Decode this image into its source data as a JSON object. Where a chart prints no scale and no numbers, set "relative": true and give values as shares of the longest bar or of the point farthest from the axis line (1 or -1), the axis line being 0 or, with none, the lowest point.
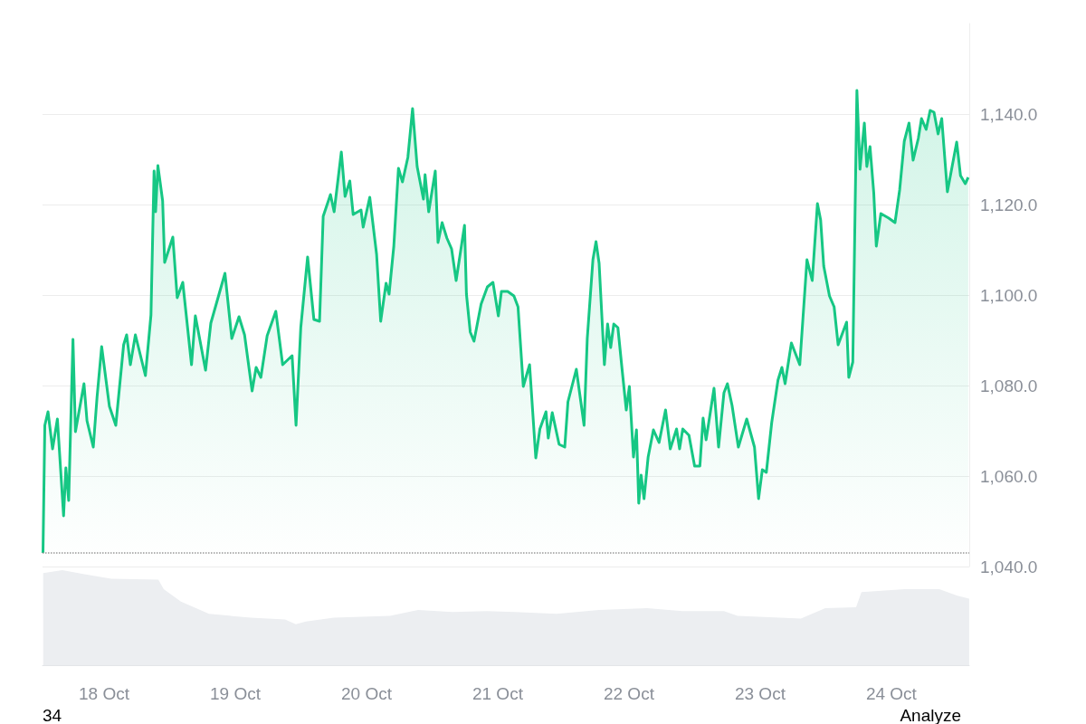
{
  "chart_data": [
    {
      "type": "area",
      "marker": "none",
      "grid": "y",
      "tick_labels": "y",
      "xlim": [
        "--10-17T12:45",
        "--10-24T14:15"
      ],
      "xticks": [
        {
          "value": "--10-18",
          "label": "18 Oct"
        },
        {
          "value": "--10-19",
          "label": "19 Oct"
        },
        {
          "value": "--10-20",
          "label": "20 Oct"
        },
        {
          "value": "--10-21",
          "label": "21 Oct"
        },
        {
          "value": "--10-22",
          "label": "22 Oct"
        },
        {
          "value": "--10-23",
          "label": "23 Oct"
        },
        {
          "value": "--10-24",
          "label": "24 Oct"
        }
      ],
      "ylim": [
        1040,
        1160
      ],
      "yticks": [
        {
          "value": 1040,
          "label": "1,040.0"
        },
        {
          "value": 1060,
          "label": "1,060.0"
        },
        {
          "value": 1080,
          "label": "1,080.0"
        },
        {
          "value": 1100,
          "label": "1,100.0"
        },
        {
          "value": 1120,
          "label": "1,120.0"
        },
        {
          "value": 1140,
          "label": "1,140.0"
        }
      ],
      "ref_lines": [
        {
          "axis": "y",
          "value": 1043,
          "color": "#999999",
          "line_style": "dotted"
        }
      ],
      "series": [
        {
          "color": "#16c784",
          "x": [
            "--10-17T12:50",
            "--10-17T13:10",
            "--10-17T13:45",
            "--10-17T14:35",
            "--10-17T15:28",
            "--10-17T16:36",
            "--10-17T17:01",
            "--10-17T17:32",
            "--10-17T18:19",
            "--10-17T18:46",
            "--10-17T20:20",
            "--10-17T20:53",
            "--10-17T22:02",
            "--10-17T22:43",
            "--10-17T23:34",
            "--10-18T00:59",
            "--10-18T02:09",
            "--10-18T03:35",
            "--10-18T04:08",
            "--10-18T04:49",
            "--10-18T05:44",
            "--10-18T07:34",
            "--10-18T08:35",
            "--10-18T09:09",
            "--10-18T09:26",
            "--10-18T09:51",
            "--10-18T10:43",
            "--10-18T11:05",
            "--10-18T12:35",
            "--10-18T13:23",
            "--10-18T14:24",
            "--10-18T16:00",
            "--10-18T16:42",
            "--10-18T18:34",
            "--10-18T19:32",
            "--10-18T22:07",
            "--10-18T23:22",
            "--10-19T00:41",
            "--10-19T01:42",
            "--10-19T03:05",
            "--10-19T03:49",
            "--10-19T04:41",
            "--10-19T05:50",
            "--10-19T07:25",
            "--10-19T08:40",
            "--10-19T10:24",
            "--10-19T11:07",
            "--10-19T11:59",
            "--10-19T13:14",
            "--10-19T14:23",
            "--10-19T15:25",
            "--10-19T16:05",
            "--10-19T17:25",
            "--10-19T18:05",
            "--10-19T19:24",
            "--10-19T20:05",
            "--10-19T20:57",
            "--10-19T21:34",
            "--10-19T23:00",
            "--10-19T23:24",
            "--10-20T00:36",
            "--10-20T01:51",
            "--10-20T02:36",
            "--10-20T03:35",
            "--10-20T04:08",
            "--10-20T05:00",
            "--10-20T05:51",
            "--10-20T06:35",
            "--10-20T07:34",
            "--10-20T08:26",
            "--10-20T09:16",
            "--10-20T10:25",
            "--10-20T10:43",
            "--10-20T11:23",
            "--10-20T12:35",
            "--10-20T13:05",
            "--10-20T13:50",
            "--10-20T14:42",
            "--10-20T15:34",
            "--10-20T16:24",
            "--10-20T17:56",
            "--10-20T18:17",
            "--10-20T18:59",
            "--10-20T19:40",
            "--10-20T20:58",
            "--10-20T22:07",
            "--10-20T23:08",
            "--10-21T00:07",
            "--10-21T00:41",
            "--10-21T01:49",
            "--10-21T02:58",
            "--10-21T03:43",
            "--10-21T04:41",
            "--10-21T05:50",
            "--10-21T06:58",
            "--10-21T07:43",
            "--10-21T08:50",
            "--10-21T09:15",
            "--10-21T09:59",
            "--10-21T11:14",
            "--10-21T12:16",
            "--10-21T12:51",
            "--10-21T14:23",
            "--10-21T15:48",
            "--10-21T16:23",
            "--10-21T17:25",
            "--10-21T17:59",
            "--10-21T18:33",
            "--10-21T19:31",
            "--10-21T20:06",
            "--10-21T20:40",
            "--10-21T21:14",
            "--10-21T21:59",
            "--10-21T22:47",
            "--10-21T23:31",
            "--10-22T00:05",
            "--10-22T00:50",
            "--10-22T01:23",
            "--10-22T01:48",
            "--10-22T02:14",
            "--10-22T02:46",
            "--10-22T03:31",
            "--10-22T04:29",
            "--10-22T05:31",
            "--10-22T06:42",
            "--10-22T07:34",
            "--10-22T08:43",
            "--10-22T09:16",
            "--10-22T09:51",
            "--10-22T10:59",
            "--10-22T12:01",
            "--10-22T12:59",
            "--10-22T13:34",
            "--10-22T14:07",
            "--10-22T15:34",
            "--10-22T16:24",
            "--10-22T17:23",
            "--10-22T18:01",
            "--10-22T18:52",
            "--10-22T20:01",
            "--10-22T21:33",
            "--10-22T22:58",
            "--10-22T23:43",
            "--10-23T00:24",
            "--10-23T01:08",
            "--10-23T02:07",
            "--10-23T03:16",
            "--10-23T03:59",
            "--10-23T04:34",
            "--10-23T05:43",
            "--10-23T07:15",
            "--10-23T08:34",
            "--10-23T09:32",
            "--10-23T10:29",
            "--10-23T11:04",
            "--10-23T11:38",
            "--10-23T12:41",
            "--10-23T13:32",
            "--10-23T14:16",
            "--10-23T15:49",
            "--10-23T16:13",
            "--10-23T16:57",
            "--10-23T17:42",
            "--10-23T18:16",
            "--10-23T19:04",
            "--10-23T19:31",
            "--10-23T20:06",
            "--10-23T20:47",
            "--10-23T21:15",
            "--10-23T22:05",
            "--10-23T23:31",
            "--10-24T00:40",
            "--10-24T01:31",
            "--10-24T02:22",
            "--10-24T03:14",
            "--10-24T03:59",
            "--10-24T04:56",
            "--10-24T05:31",
            "--10-24T06:22",
            "--10-24T07:06",
            "--10-24T07:48",
            "--10-24T08:33",
            "--10-24T09:13",
            "--10-24T10:15",
            "--10-24T11:57",
            "--10-24T12:39",
            "--10-24T13:31",
            "--10-24T14:04"
          ],
          "values": [
            1043,
            1071.2,
            1074.2,
            1066,
            1072.6,
            1051.2,
            1061.8,
            1054.6,
            1090.2,
            1069.8,
            1080.4,
            1072.2,
            1066.4,
            1077.4,
            1088.6,
            1075.4,
            1071.2,
            1089,
            1091.2,
            1084.6,
            1091.2,
            1082.2,
            1095.6,
            1127.4,
            1118.4,
            1128.6,
            1120.8,
            1107.2,
            1112.8,
            1099.4,
            1102.8,
            1084.6,
            1095.4,
            1083.4,
            1093.8,
            1104.8,
            1090.4,
            1095.2,
            1091.2,
            1078.8,
            1084,
            1081.8,
            1091,
            1096.4,
            1084.6,
            1086.6,
            1071.2,
            1092.8,
            1108.4,
            1094.6,
            1094.2,
            1117.4,
            1122.2,
            1118.4,
            1131.6,
            1121.8,
            1125.2,
            1117.8,
            1118.8,
            1115,
            1121.6,
            1109,
            1094.2,
            1102.6,
            1100.2,
            1110.8,
            1128,
            1125,
            1130.4,
            1141.2,
            1128.4,
            1121.2,
            1126.6,
            1118.4,
            1127.4,
            1111.6,
            1116,
            1112.6,
            1110.2,
            1103.2,
            1115.4,
            1100.2,
            1091.8,
            1089.8,
            1098,
            1101.8,
            1102.8,
            1095.4,
            1100.8,
            1100.8,
            1099.8,
            1097.4,
            1079.8,
            1084.6,
            1064,
            1070.4,
            1074.2,
            1068.4,
            1074,
            1067,
            1066.4,
            1076.4,
            1083.6,
            1071.2,
            1090.4,
            1107.8,
            1111.8,
            1107,
            1084.6,
            1093.6,
            1088.4,
            1093.6,
            1092.8,
            1083.2,
            1074.6,
            1079.8,
            1064.2,
            1070.2,
            1054,
            1060.2,
            1055,
            1064.2,
            1070.2,
            1067.4,
            1074.6,
            1066,
            1070.4,
            1066,
            1070.4,
            1069,
            1062.2,
            1062.2,
            1072.8,
            1068,
            1079.4,
            1066.4,
            1078.4,
            1080.4,
            1075.6,
            1066.4,
            1072.6,
            1066.4,
            1055,
            1061.4,
            1060.8,
            1071.8,
            1081.2,
            1084,
            1080.4,
            1089.4,
            1084.6,
            1107.8,
            1103.2,
            1120.2,
            1116.6,
            1106.4,
            1099.8,
            1097.4,
            1089,
            1094,
            1081.8,
            1085.2,
            1145.2,
            1127.8,
            1138,
            1128.4,
            1132.8,
            1122.6,
            1110.8,
            1118,
            1117,
            1116,
            1123.2,
            1134,
            1138,
            1129.8,
            1134.6,
            1139,
            1136.6,
            1140.8,
            1140.4,
            1135.6,
            1139,
            1122.8,
            1133.8,
            1126.4,
            1124.6,
            1126
          ]
        }
      ]
    },
    {
      "type": "area",
      "relative": true,
      "marker": "none",
      "tick_labels": "x",
      "xlim": [
        "--10-17T12:45",
        "--10-24T14:15"
      ],
      "xticks": [
        {
          "value": "--10-18",
          "label": "18 Oct"
        },
        {
          "value": "--10-19",
          "label": "19 Oct"
        },
        {
          "value": "--10-20",
          "label": "20 Oct"
        },
        {
          "value": "--10-21",
          "label": "21 Oct"
        },
        {
          "value": "--10-22",
          "label": "22 Oct"
        },
        {
          "value": "--10-23",
          "label": "23 Oct"
        },
        {
          "value": "--10-24",
          "label": "24 Oct"
        }
      ],
      "annotations": [
        "34",
        "Analyze"
      ],
      "series": [
        {
          "color": "#eceef1",
          "x": [
            "--10-17T12:52",
            "--10-17T16:23",
            "--10-17T20:11",
            "--10-18T01:19",
            "--10-18T09:56",
            "--10-18T10:55",
            "--10-18T14:04",
            "--10-18T19:12",
            "--10-19T02:49",
            "--10-19T09:06",
            "--10-19T11:05",
            "--10-19T12:55",
            "--10-19T18:02",
            "--10-20T04:18",
            "--10-20T09:26",
            "--10-20T15:44",
            "--10-20T22:01",
            "--10-21T03:09",
            "--10-21T10:46",
            "--10-21T18:32",
            "--10-22T03:19",
            "--10-22T09:46",
            "--10-22T17:23",
            "--10-22T19:52",
            "--10-23T07:27",
            "--10-23T11:55",
            "--10-23T17:33",
            "--10-23T18:32",
            "--10-24T02:29",
            "--10-24T08:46",
            "--10-24T12:05",
            "--10-24T14:14"
          ],
          "values": [
            0.97,
            1,
            0.96,
            0.91,
            0.9,
            0.8,
            0.67,
            0.54,
            0.5,
            0.48,
            0.43,
            0.46,
            0.5,
            0.52,
            0.58,
            0.56,
            0.57,
            0.56,
            0.54,
            0.58,
            0.6,
            0.57,
            0.57,
            0.52,
            0.49,
            0.6,
            0.61,
            0.77,
            0.8,
            0.8,
            0.73,
            0.7
          ]
        }
      ]
    }
  ]
}
